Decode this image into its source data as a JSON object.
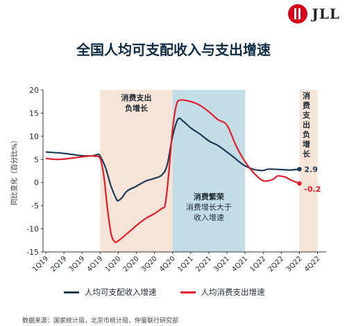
{
  "logo": {
    "text": "JLL",
    "color": "#d6001c"
  },
  "title": "全国人均可支配收入与支出增速",
  "source": "数据来源：国家统计局，北京市统计局，仲量联行研究部",
  "chart_data": {
    "type": "line",
    "ylabel": "同比变化（百分比%）",
    "ylim": [
      -15,
      20
    ],
    "yticks": [
      -15,
      -10,
      -5,
      0,
      5,
      10,
      15,
      20
    ],
    "x_labels": [
      "1Q19",
      "2Q19",
      "3Q19",
      "4Q19",
      "1Q20",
      "2Q20",
      "3Q20",
      "4Q20",
      "1Q21",
      "2Q21",
      "3Q21",
      "4Q21",
      "1Q22",
      "2Q22",
      "3Q22",
      "4Q22"
    ],
    "grid": false,
    "legend_position": "bottom",
    "shaded_regions": [
      {
        "from": "4Q19",
        "to": "4Q20",
        "label": "消费支出负增长",
        "color": "#f6e4d8"
      },
      {
        "from": "4Q20",
        "to": "4Q21",
        "label_title": "消费繁荣",
        "label_sub": "消费增长大于收入增速",
        "color": "#c3dde6"
      },
      {
        "from": "3Q22",
        "to": "4Q22",
        "label": "消费支出负增长",
        "color": "#f6e4d8"
      }
    ],
    "series": [
      {
        "name": "人均可支配收入增速",
        "color": "#1d3a55",
        "end_label": "2.9",
        "points": [
          [
            0,
            6.6
          ],
          [
            1,
            6.3
          ],
          [
            2,
            5.8
          ],
          [
            2.6,
            5.8
          ],
          [
            2.9,
            6.1
          ],
          [
            3,
            5.7
          ],
          [
            3.3,
            3.2
          ],
          [
            3.6,
            -0.8
          ],
          [
            3.9,
            -3.6
          ],
          [
            4,
            -3.9
          ],
          [
            4.2,
            -3.3
          ],
          [
            4.5,
            -1.8
          ],
          [
            5,
            -0.8
          ],
          [
            5.5,
            0.3
          ],
          [
            6,
            0.9
          ],
          [
            6.4,
            1.6
          ],
          [
            6.7,
            3.8
          ],
          [
            7,
            10.0
          ],
          [
            7.3,
            13.7
          ],
          [
            7.6,
            13.2
          ],
          [
            8,
            11.8
          ],
          [
            8.5,
            10.5
          ],
          [
            9,
            9.0
          ],
          [
            9.5,
            8.0
          ],
          [
            10,
            6.6
          ],
          [
            10.4,
            5.4
          ],
          [
            10.7,
            4.4
          ],
          [
            11,
            3.6
          ],
          [
            11.5,
            2.8
          ],
          [
            12,
            2.6
          ],
          [
            12.3,
            2.9
          ],
          [
            13,
            2.8
          ],
          [
            13.5,
            2.7
          ],
          [
            14,
            2.9
          ]
        ]
      },
      {
        "name": "人均消费支出增速",
        "color": "#e11d2a",
        "end_label": "-0.2",
        "points": [
          [
            0,
            5.2
          ],
          [
            0.7,
            5.0
          ],
          [
            1.5,
            5.3
          ],
          [
            2.3,
            5.7
          ],
          [
            2.7,
            5.7
          ],
          [
            3,
            5.2
          ],
          [
            3.2,
            1.5
          ],
          [
            3.4,
            -5.5
          ],
          [
            3.6,
            -11.0
          ],
          [
            3.8,
            -12.8
          ],
          [
            4,
            -12.6
          ],
          [
            4.5,
            -11.0
          ],
          [
            5,
            -9.3
          ],
          [
            5.5,
            -7.8
          ],
          [
            6,
            -6.7
          ],
          [
            6.4,
            -5.6
          ],
          [
            6.6,
            -4.6
          ],
          [
            6.8,
            2.5
          ],
          [
            7,
            11.5
          ],
          [
            7.2,
            16.6
          ],
          [
            7.4,
            17.8
          ],
          [
            8,
            17.5
          ],
          [
            8.5,
            16.7
          ],
          [
            9,
            15.3
          ],
          [
            9.5,
            13.6
          ],
          [
            10,
            12.4
          ],
          [
            10.5,
            8.0
          ],
          [
            11,
            4.5
          ],
          [
            11.5,
            2.0
          ],
          [
            12,
            0.4
          ],
          [
            12.5,
            0.6
          ],
          [
            12.8,
            1.4
          ],
          [
            13.2,
            1.2
          ],
          [
            13.5,
            0.6
          ],
          [
            14,
            -0.2
          ]
        ]
      }
    ]
  }
}
